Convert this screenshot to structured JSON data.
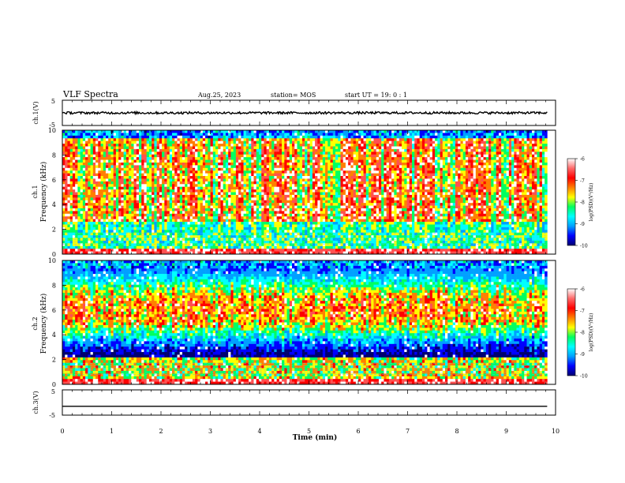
{
  "header": {
    "title": "VLF Spectra",
    "date": "Aug.25, 2023",
    "station": "station= MOS",
    "start": "start  UT =   19: 0   : 1"
  },
  "chart_data": [
    {
      "type": "line",
      "panel": "ch1-voltage",
      "ylabel": "ch.1(V)",
      "ylim": [
        -5,
        5
      ],
      "yticks": [
        "5",
        "-5"
      ],
      "x": [
        0,
        1,
        2,
        3,
        4,
        5,
        6,
        7,
        8,
        9,
        9.83
      ],
      "series": [
        {
          "values": [
            0,
            0,
            0,
            0,
            0,
            0,
            0,
            0,
            0,
            0,
            0
          ]
        }
      ]
    },
    {
      "type": "heatmap",
      "panel": "ch1-spectrogram",
      "ylabel": "ch.1\nFrequency (kHz)",
      "ylim": [
        0,
        10
      ],
      "yticks": [
        "0",
        "2",
        "4",
        "6",
        "8",
        "10"
      ],
      "xlim": [
        0,
        10
      ],
      "x_extent_min": 9.83,
      "colorbar": {
        "label": "log(PSD)(V²/Hz)",
        "range": [
          -10,
          -6
        ],
        "ticks": [
          "-6",
          "-7",
          "-8",
          "-9",
          "-10"
        ],
        "colors": [
          "#000070",
          "#0000ff",
          "#00a0ff",
          "#00ffff",
          "#00ff60",
          "#ffff00",
          "#ff7f00",
          "#ff0000",
          "#ff6a6a",
          "#ffffff"
        ]
      }
    },
    {
      "type": "heatmap",
      "panel": "ch2-spectrogram",
      "ylabel": "ch.2\nFrequency (kHz)",
      "ylim": [
        0,
        10
      ],
      "yticks": [
        "0",
        "2",
        "4",
        "6",
        "8",
        "10"
      ],
      "xlim": [
        0,
        10
      ],
      "x_extent_min": 9.83,
      "colorbar": {
        "label": "log(PSD)(V²/Hz)",
        "range": [
          -10,
          -6
        ],
        "ticks": [
          "-6",
          "-7",
          "-8",
          "-9",
          "-10"
        ],
        "colors": [
          "#000070",
          "#0000ff",
          "#00a0ff",
          "#00ffff",
          "#00ff60",
          "#ffff00",
          "#ff7f00",
          "#ff0000",
          "#ff6a6a",
          "#ffffff"
        ]
      }
    },
    {
      "type": "line",
      "panel": "ch3-voltage",
      "ylabel": "ch.3(V)",
      "ylim": [
        -5,
        5
      ],
      "yticks": [
        "5",
        "-5"
      ],
      "xlabel": "Time (min)",
      "xlim": [
        0,
        10
      ],
      "xticks": [
        "0",
        "1",
        "2",
        "3",
        "4",
        "5",
        "6",
        "7",
        "8",
        "9",
        "10"
      ],
      "x": [
        0,
        9.83
      ],
      "series": [
        {
          "values": [
            -1.5,
            -1.5
          ]
        }
      ]
    }
  ]
}
